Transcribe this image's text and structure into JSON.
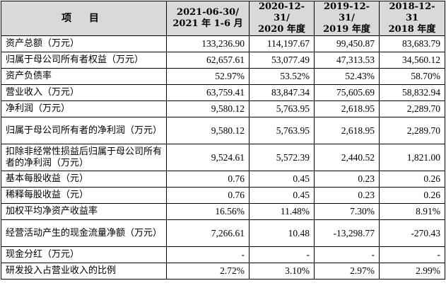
{
  "header": {
    "item": "项 目",
    "columns": [
      {
        "line1": "2021-06-30/",
        "line2": "2021 年 1-6 月"
      },
      {
        "line1": "2020-12-31/",
        "line2": "2020 年度"
      },
      {
        "line1": "2019-12-31/",
        "line2": "2019 年度"
      },
      {
        "line1": "2018-12-31",
        "line2": "2018 年度"
      }
    ]
  },
  "rows": [
    {
      "label": "资产总额（万元）",
      "values": [
        "133,236.90",
        "114,197.67",
        "99,450.87",
        "83,683.79"
      ]
    },
    {
      "label": "归属于母公司所有者权益（万元）",
      "values": [
        "62,657.61",
        "53,077.49",
        "47,313.53",
        "34,560.12"
      ]
    },
    {
      "label": "资产负债率",
      "values": [
        "52.97%",
        "53.52%",
        "52.43%",
        "58.70%"
      ]
    },
    {
      "label": "营业收入（万元）",
      "values": [
        "63,759.41",
        "83,847.34",
        "75,605.69",
        "58,832.94"
      ]
    },
    {
      "label": "净利润（万元）",
      "values": [
        "9,580.12",
        "5,763.95",
        "2,618.95",
        "2,289.70"
      ]
    },
    {
      "label": "归属于母公司所有者的净利润（万元）",
      "values": [
        "9,580.12",
        "5,763.95",
        "2,618.95",
        "2,289.70"
      ]
    },
    {
      "label": "扣除非经常性损益后归属于母公司所有者的净利润（万元）",
      "values": [
        "9,524.61",
        "5,572.39",
        "2,440.52",
        "1,821.00"
      ]
    },
    {
      "label": "基本每股收益（元）",
      "values": [
        "0.76",
        "0.45",
        "0.23",
        "0.26"
      ]
    },
    {
      "label": "稀释每股收益（元）",
      "values": [
        "0.76",
        "0.45",
        "0.23",
        "0.26"
      ]
    },
    {
      "label": "加权平均净资产收益率",
      "values": [
        "16.56%",
        "11.48%",
        "7.30%",
        "8.91%"
      ]
    },
    {
      "label": "经营活动产生的现金流量净额（万元）",
      "values": [
        "7,266.61",
        "10.48",
        "-13,298.77",
        "-270.43"
      ]
    },
    {
      "label": "现金分红（万元）",
      "values": [
        "-",
        "-",
        "-",
        "-"
      ]
    },
    {
      "label": "研发投入占营业收入的比例",
      "values": [
        "2.72%",
        "3.10%",
        "2.97%",
        "2.99%"
      ]
    }
  ]
}
